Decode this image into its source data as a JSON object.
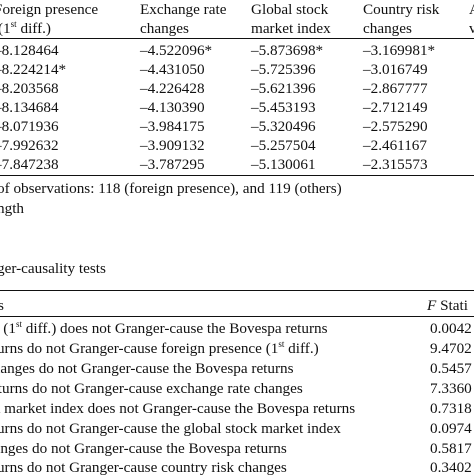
{
  "table_top": {
    "headers": [
      {
        "line1": "Foreign presence",
        "line2_pre": "(1",
        "line2_sup": "st",
        "line2_post": " diff.)"
      },
      {
        "line1": "Exchange rate",
        "line2": "changes"
      },
      {
        "line1": "Global stock",
        "line2": "market index"
      },
      {
        "line1": "Country risk",
        "line2": "changes"
      },
      {
        "line1": "A",
        "line2": "v"
      }
    ],
    "rows": [
      [
        "–8.128464",
        "–4.522096*",
        "–5.873698*",
        "–3.169981*"
      ],
      [
        "–8.224214*",
        "–4.431050",
        "–5.725396",
        "–3.016749"
      ],
      [
        "–8.203568",
        "–4.226428",
        "–5.621396",
        "–2.867777"
      ],
      [
        "–8.134684",
        "–4.130390",
        "–5.453193",
        "–2.712149"
      ],
      [
        "–8.071936",
        "–3.984175",
        "–5.320496",
        "–2.575290"
      ],
      [
        "–7.992632",
        "–3.909132",
        "–5.257504",
        "–2.461167"
      ],
      [
        "–7.847238",
        "–3.787295",
        "–5.130061",
        "–2.315573"
      ]
    ]
  },
  "footnotes": {
    "observations": "of observations: 118 (foreign presence), and 119 (others)",
    "length": "ngth"
  },
  "section_title": "ger-causality tests",
  "table_bottom": {
    "header_left": "s",
    "header_right_italic": "F",
    "header_right": " Stati",
    "rows": [
      {
        "pre": "ce (1",
        "sup": "st",
        "post": " diff.) does not Granger-cause the Bovespa returns",
        "value": "0.0042"
      },
      {
        "pre": "eturns do not Granger-cause foreign presence (1",
        "sup": "st",
        "post": " diff.)",
        "value": "9.4702"
      },
      {
        "pre": "changes do not Granger-cause the Bovespa returns",
        "sup": "",
        "post": "",
        "value": "0.5457"
      },
      {
        "pre": "returns do not Granger-cause exchange rate changes",
        "sup": "",
        "post": "",
        "value": "7.3360"
      },
      {
        "pre": "ck market index does not Granger-cause the Bovespa returns",
        "sup": "",
        "post": "",
        "value": "0.7318"
      },
      {
        "pre": "eturns do not Granger-cause the global stock market index",
        "sup": "",
        "post": "",
        "value": "0.0974"
      },
      {
        "pre": "hanges do not Granger-cause the Bovespa returns",
        "sup": "",
        "post": "",
        "value": "0.5817"
      },
      {
        "pre": "eturns do not Granger-cause country risk changes",
        "sup": "",
        "post": "",
        "value": "0.3402"
      }
    ]
  }
}
